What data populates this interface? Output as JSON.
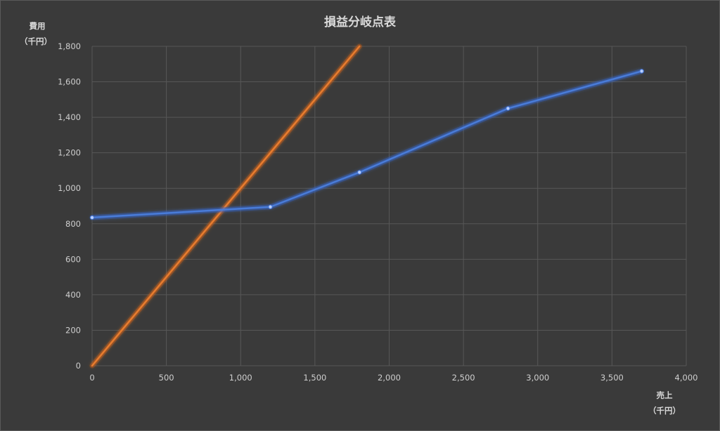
{
  "chart_data": {
    "type": "line",
    "title": "損益分岐点表",
    "ylabel": "費用",
    "ylabel_unit": "（千円）",
    "xlabel": "売上",
    "xlabel_unit": "（千円）",
    "xlim": [
      0,
      4000
    ],
    "ylim": [
      0,
      1800
    ],
    "xticks": [
      0,
      500,
      1000,
      1500,
      2000,
      2500,
      3000,
      3500,
      4000
    ],
    "xtick_labels": [
      "0",
      "500",
      "1,000",
      "1,500",
      "2,000",
      "2,500",
      "3,000",
      "3,500",
      "4,000"
    ],
    "yticks": [
      0,
      200,
      400,
      600,
      800,
      1000,
      1200,
      1400,
      1600,
      1800
    ],
    "ytick_labels": [
      "0",
      "200",
      "400",
      "600",
      "800",
      "1,000",
      "1,200",
      "1,400",
      "1,600",
      "1,800"
    ],
    "grid": true,
    "legend": "none",
    "series": [
      {
        "color": "#e87c2e",
        "glow": "#c0550f",
        "markers": false,
        "points": [
          [
            0,
            0
          ],
          [
            1800,
            1800
          ]
        ]
      },
      {
        "color": "#4a7bd9",
        "glow": "#2c56b8",
        "markers": true,
        "points": [
          [
            0,
            835
          ],
          [
            1200,
            895
          ],
          [
            1800,
            1090
          ],
          [
            2800,
            1450
          ],
          [
            3700,
            1660
          ]
        ]
      }
    ]
  }
}
